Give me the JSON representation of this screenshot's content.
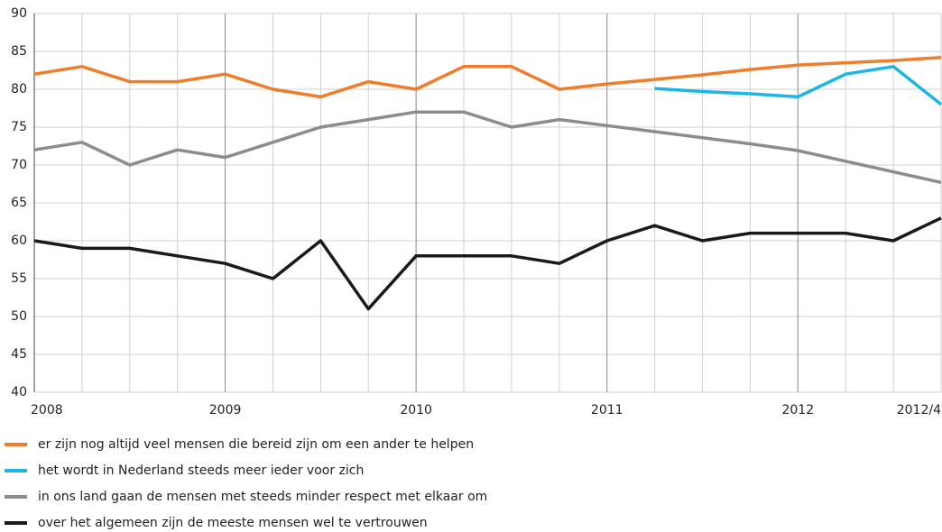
{
  "chart_data": {
    "type": "line",
    "categories": [
      "2008",
      null,
      null,
      null,
      "2009",
      null,
      null,
      null,
      "2010",
      null,
      null,
      null,
      "2011",
      null,
      null,
      null,
      "2012",
      null,
      null,
      "2012/4"
    ],
    "series": [
      {
        "name": "er zijn nog altijd veel mensen die bereid zijn om een ander te helpen",
        "color": "#f07d2a",
        "values": [
          82,
          83,
          81,
          81,
          82,
          80,
          79,
          81,
          80,
          83,
          83,
          80,
          80.7,
          81.3,
          81.9,
          82.6,
          83.2,
          83.5,
          83.8,
          84.2
        ]
      },
      {
        "name": "het wordt in Nederland steeds meer ieder voor zich",
        "color": "#1ab6e8",
        "values": [
          null,
          null,
          null,
          null,
          null,
          null,
          null,
          null,
          null,
          null,
          null,
          null,
          null,
          80.1,
          79.7,
          79.4,
          79,
          82,
          83,
          78
        ]
      },
      {
        "name": "in ons land gaan de mensen met steeds minder respect met elkaar om",
        "color": "#8c8c8c",
        "values": [
          72,
          73,
          70,
          72,
          71,
          73,
          75,
          76,
          77,
          77,
          75,
          76,
          75.2,
          74.4,
          73.6,
          72.8,
          71.9,
          70.5,
          69.1,
          67.7
        ]
      },
      {
        "name": "over het algemeen zijn de meeste mensen wel te vertrouwen",
        "color": "#1a1a1a",
        "values": [
          60,
          59,
          59,
          58,
          57,
          55,
          60,
          51,
          58,
          58,
          58,
          57,
          60,
          62,
          60,
          61,
          61,
          61,
          60,
          63
        ]
      }
    ],
    "ylim": [
      40,
      90
    ],
    "yticks": [
      40,
      45,
      50,
      55,
      60,
      65,
      70,
      75,
      80,
      85,
      90
    ],
    "grid": true
  }
}
